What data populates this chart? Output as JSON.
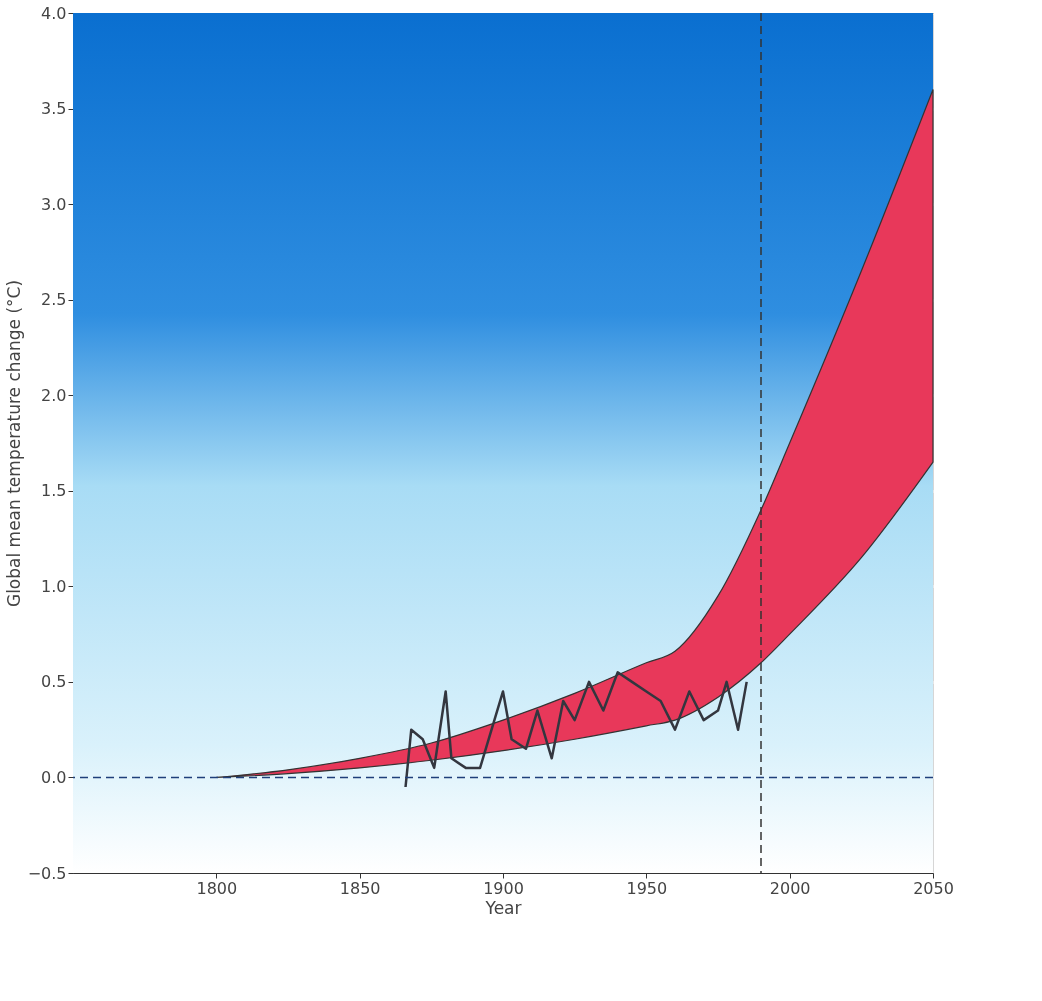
{
  "chart_data": {
    "type": "area",
    "xlabel": "Year",
    "ylabel": "Global mean temperature change (°C)",
    "xlim": [
      1750,
      2050
    ],
    "xticks": [
      1800,
      1850,
      1900,
      1950,
      2000,
      2050
    ],
    "ylim": [
      -0.5,
      4.0
    ],
    "yticks": [
      {
        "value": -0.5,
        "label": "−0.5"
      },
      {
        "value": 0,
        "label": "0.0"
      },
      {
        "value": 0.5,
        "label": "0.5"
      },
      {
        "value": 1,
        "label": "1.0"
      },
      {
        "value": 1.5,
        "label": "1.5"
      },
      {
        "value": 2,
        "label": "2.0"
      },
      {
        "value": 2.5,
        "label": "2.5"
      },
      {
        "value": 3,
        "label": "3.0"
      },
      {
        "value": 3.5,
        "label": "3.5"
      },
      {
        "value": 4,
        "label": "4.0"
      }
    ],
    "grid": true,
    "line_style": "solid",
    "series": [
      {
        "color": "#e8385a",
        "x": [
          1800,
          1825,
          1850,
          1875,
          1900,
          1925,
          1950,
          1960,
          1975,
          1990,
          2000,
          2025,
          2050
        ],
        "values": [
          null,
          null,
          null,
          null,
          null,
          null,
          null,
          null,
          null,
          null,
          null,
          null,
          null
        ],
        "upper": [
          0,
          0.04,
          0.1,
          0.18,
          0.3,
          0.44,
          0.6,
          0.66,
          0.95,
          1.4,
          1.75,
          2.65,
          3.6
        ],
        "lower": [
          0,
          0.02,
          0.05,
          0.09,
          0.14,
          0.2,
          0.27,
          0.3,
          0.42,
          0.6,
          0.75,
          1.15,
          1.65
        ]
      },
      {
        "type": "line",
        "color": "#33363f",
        "x": [
          1866,
          1868,
          1872,
          1876,
          1880,
          1882,
          1887,
          1892,
          1897,
          1900,
          1903,
          1908,
          1912,
          1917,
          1921,
          1925,
          1930,
          1935,
          1940,
          1945,
          1950,
          1955,
          1960,
          1965,
          1970,
          1975,
          1978,
          1982,
          1985
        ],
        "values": [
          -0.05,
          0.25,
          0.2,
          0.05,
          0.45,
          0.1,
          0.05,
          0.05,
          0.3,
          0.45,
          0.2,
          0.15,
          0.35,
          0.1,
          0.4,
          0.3,
          0.5,
          0.35,
          0.55,
          0.5,
          0.45,
          0.4,
          0.25,
          0.45,
          0.3,
          0.35,
          0.5,
          0.25,
          0.5
        ]
      }
    ],
    "ref_lines": [
      {
        "axis": "y",
        "value": 0,
        "line_style": "dashed",
        "color": "#1f3f7a"
      },
      {
        "axis": "x",
        "value": 1990,
        "line_style": "dashed",
        "color": "#333333"
      }
    ]
  }
}
